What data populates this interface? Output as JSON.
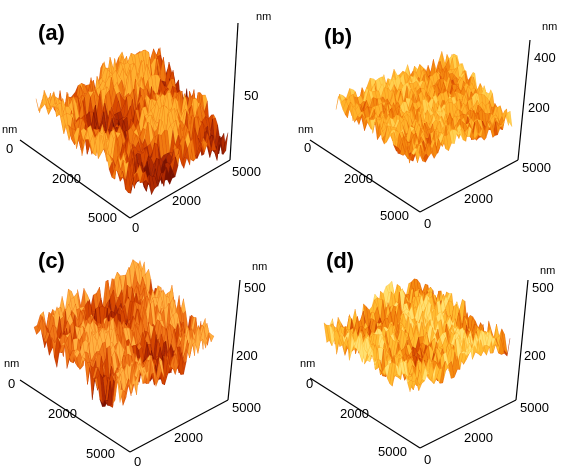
{
  "panels": [
    {
      "label": "(a)",
      "unit": "nm",
      "z_unit": "nm",
      "x_ticks": [
        "0",
        "2000",
        "5000"
      ],
      "y_ticks": [
        "0",
        "2000",
        "5000"
      ],
      "z_ticks": [
        "50"
      ],
      "z_range": [
        0,
        100
      ],
      "roughness_scale": 0.55,
      "colors": [
        "#7a1200",
        "#b02a00",
        "#d84a00",
        "#f07a10",
        "#ffb030"
      ]
    },
    {
      "label": "(b)",
      "unit": "nm",
      "z_unit": "nm",
      "x_ticks": [
        "0",
        "2000",
        "5000"
      ],
      "y_ticks": [
        "0",
        "2000",
        "5000"
      ],
      "z_ticks": [
        "200",
        "400"
      ],
      "z_range": [
        0,
        400
      ],
      "roughness_scale": 0.18,
      "colors": [
        "#c03000",
        "#e25a00",
        "#f58a10",
        "#ffb22a",
        "#ffd050"
      ]
    },
    {
      "label": "(c)",
      "unit": "nm",
      "z_unit": "nm",
      "x_ticks": [
        "0",
        "2000",
        "5000"
      ],
      "y_ticks": [
        "0",
        "2000",
        "5000"
      ],
      "z_ticks": [
        "200",
        "500"
      ],
      "z_range": [
        0,
        500
      ],
      "roughness_scale": 0.42,
      "colors": [
        "#7a1000",
        "#b02800",
        "#d64800",
        "#f07818",
        "#ffb040"
      ]
    },
    {
      "label": "(d)",
      "unit": "nm",
      "z_unit": "nm",
      "x_ticks": [
        "0",
        "2000",
        "5000"
      ],
      "y_ticks": [
        "0",
        "2000",
        "5000"
      ],
      "z_ticks": [
        "200",
        "500"
      ],
      "z_range": [
        0,
        500
      ],
      "roughness_scale": 0.32,
      "colors": [
        "#b02a00",
        "#dc5200",
        "#f58a10",
        "#ffbb30",
        "#ffe070"
      ]
    }
  ]
}
